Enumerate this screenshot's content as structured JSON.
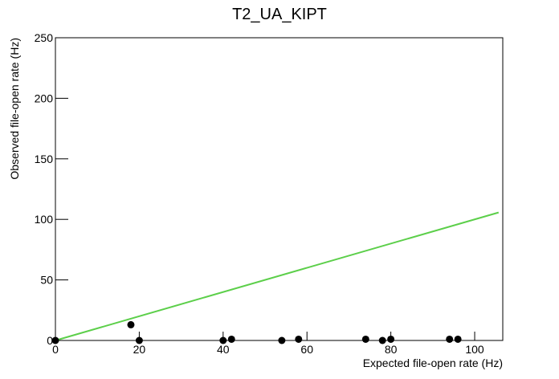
{
  "chart_data": {
    "type": "scatter",
    "title": "T2_UA_KIPT",
    "xlabel": "Expected file-open rate (Hz)",
    "ylabel": "Observed file-open rate (Hz)",
    "xlim": [
      0,
      106.7
    ],
    "ylim": [
      0,
      250
    ],
    "xticks": [
      0,
      20,
      40,
      60,
      80,
      100
    ],
    "yticks": [
      0,
      50,
      100,
      150,
      200,
      250
    ],
    "series": [
      {
        "type": "scatter",
        "color": "#000000",
        "x": [
          0,
          18,
          20,
          40,
          42,
          54,
          58,
          74,
          78,
          80,
          94,
          96
        ],
        "values": [
          0,
          13,
          0,
          0,
          1,
          0,
          1,
          1,
          0,
          1,
          1,
          1
        ]
      },
      {
        "type": "line",
        "color": "#5ccf4a",
        "x": [
          0,
          105.7
        ],
        "values": [
          0,
          105.7
        ]
      }
    ]
  }
}
